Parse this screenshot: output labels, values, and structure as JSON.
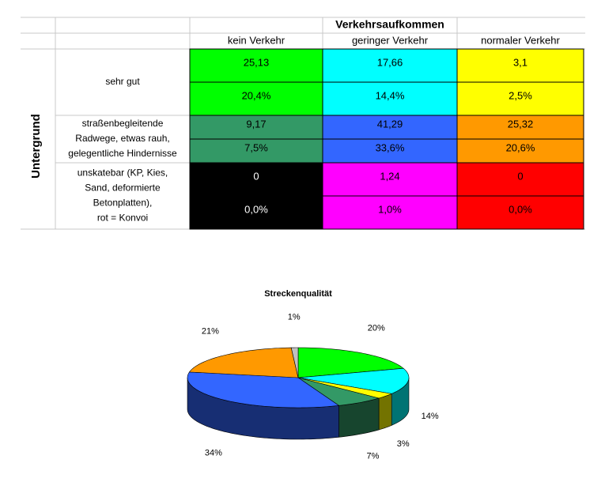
{
  "table": {
    "group_header": "Verkehrsaufkommen",
    "row_group": "Untergrund",
    "columns": [
      "kein Verkehr",
      "geringer Verkehr",
      "normaler Verkehr"
    ],
    "rows": [
      {
        "label": [
          "sehr gut"
        ],
        "values": [
          "25,13",
          "17,66",
          "3,1"
        ],
        "percents": [
          "20,4%",
          "14,4%",
          "2,5%"
        ],
        "colors": [
          "#00ff00",
          "#00ffff",
          "#ffff00"
        ]
      },
      {
        "label": [
          "straßenbegleitende",
          "Radwege, etwas rauh,",
          "gelegentliche Hindernisse"
        ],
        "values": [
          "9,17",
          "41,29",
          "25,32"
        ],
        "percents": [
          "7,5%",
          "33,6%",
          "20,6%"
        ],
        "colors": [
          "#339966",
          "#3366ff",
          "#ff9900"
        ]
      },
      {
        "label": [
          "unskatebar (KP, Kies,",
          "Sand, deformierte",
          "Betonplatten),",
          "rot = Konvoi"
        ],
        "values": [
          "0",
          "1,24",
          "0"
        ],
        "percents": [
          "0,0%",
          "1,0%",
          "0,0%"
        ],
        "colors": [
          "#000000",
          "#ff00ff",
          "#ff0000"
        ]
      }
    ]
  },
  "chart_data": {
    "type": "pie",
    "title": "Streckenqualität",
    "values": [
      20,
      14,
      3,
      7,
      34,
      21,
      1
    ],
    "value_labels": [
      "20%",
      "14%",
      "3%",
      "7%",
      "34%",
      "21%",
      "1%"
    ],
    "colors": [
      "#00ff00",
      "#00ffff",
      "#ffff00",
      "#339966",
      "#3366ff",
      "#ff9900",
      "#c0c0c0"
    ]
  }
}
